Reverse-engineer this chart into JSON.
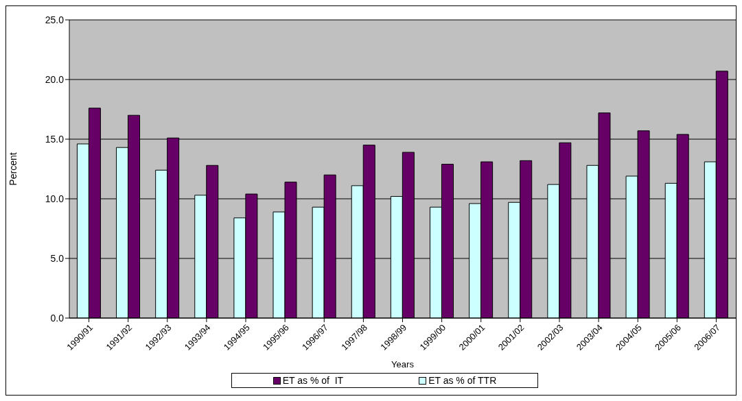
{
  "chart_data": {
    "type": "bar",
    "xlabel": "Years",
    "ylabel": "Percent",
    "categories": [
      "1990/91",
      "1991/92",
      "1992/93",
      "1993/94",
      "1994/95",
      "1995/96",
      "1996/97",
      "1997/98",
      "1998/99",
      "1999/00",
      "2000/01",
      "2001/02",
      "2002/03",
      "2003/04",
      "2004/05",
      "2005/06",
      "2006/07"
    ],
    "series": [
      {
        "name": "ET as % of TTR",
        "color": "#ccffff",
        "values": [
          14.6,
          14.3,
          12.4,
          10.3,
          8.4,
          8.9,
          9.3,
          11.1,
          10.2,
          9.3,
          9.6,
          9.7,
          11.2,
          12.8,
          11.9,
          11.3,
          13.1
        ]
      },
      {
        "name": "ET as % of  IT",
        "color": "#660066",
        "values": [
          17.6,
          17.0,
          15.1,
          12.8,
          10.4,
          11.4,
          12.0,
          14.5,
          13.9,
          12.9,
          13.1,
          13.2,
          14.7,
          17.2,
          15.7,
          15.4,
          20.7
        ]
      }
    ],
    "ylim": [
      0,
      25
    ],
    "yticks": [
      {
        "value": 0,
        "label": "0.0"
      },
      {
        "value": 5,
        "label": "5.0"
      },
      {
        "value": 10,
        "label": "10.0"
      },
      {
        "value": 15,
        "label": "15.0"
      },
      {
        "value": 20,
        "label": "20.0"
      },
      {
        "value": 25,
        "label": "25.0"
      }
    ],
    "grid": "y",
    "legend": "bottom"
  }
}
